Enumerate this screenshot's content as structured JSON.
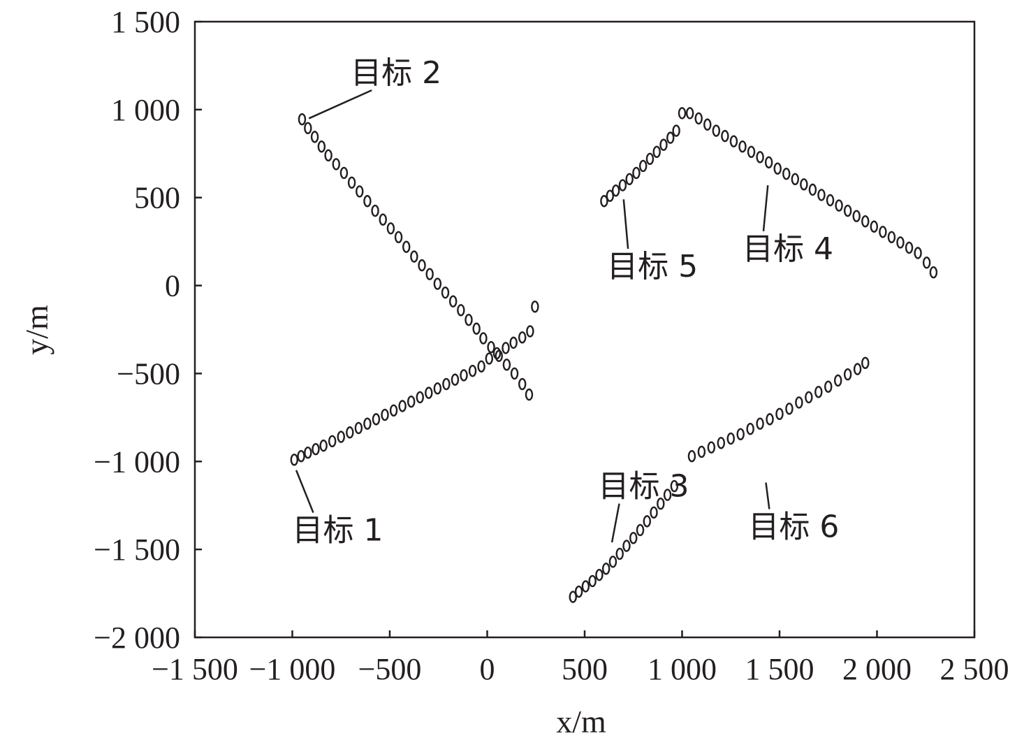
{
  "chart_data": {
    "type": "scatter",
    "title": "",
    "xlabel": "x/m",
    "ylabel": "y/m",
    "xlim": [
      -1500,
      2500
    ],
    "ylim": [
      -2000,
      1500
    ],
    "xticks": [
      -1500,
      -1000,
      -500,
      0,
      500,
      1000,
      1500,
      2000,
      2500
    ],
    "yticks": [
      -2000,
      -1500,
      -1000,
      -500,
      0,
      500,
      1000,
      1500
    ],
    "xtick_labels": [
      "−1 500",
      "−1 000",
      "−500",
      "0",
      "500",
      "1 000",
      "1 500",
      "2 000",
      "2 500"
    ],
    "ytick_labels": [
      "−2 000",
      "−1 500",
      "−1 000",
      "−500",
      "0",
      "500",
      "1 000",
      "1 500"
    ],
    "grid": false,
    "marker": "o",
    "series": [
      {
        "name": "目标 1",
        "label_pos": [
          -1000,
          -1450
        ],
        "anchor": [
          -980,
          -1050
        ],
        "x": [
          -990,
          -955,
          -920,
          -880,
          -840,
          -795,
          -750,
          -705,
          -660,
          -615,
          -570,
          -525,
          -480,
          -435,
          -390,
          -345,
          -300,
          -255,
          -210,
          -165,
          -120,
          -75,
          -30,
          10,
          50,
          95,
          135,
          180,
          220,
          245
        ],
        "y": [
          -990,
          -970,
          -950,
          -930,
          -910,
          -885,
          -860,
          -835,
          -810,
          -785,
          -760,
          -735,
          -710,
          -685,
          -660,
          -635,
          -610,
          -585,
          -560,
          -535,
          -510,
          -485,
          -460,
          -415,
          -385,
          -355,
          -325,
          -295,
          -260,
          -120
        ]
      },
      {
        "name": "目标 2",
        "label_pos": [
          -700,
          1150
        ],
        "anchor": [
          -915,
          950
        ],
        "x": [
          -950,
          -920,
          -885,
          -850,
          -815,
          -775,
          -735,
          -695,
          -655,
          -615,
          -575,
          -535,
          -495,
          -455,
          -415,
          -375,
          -335,
          -295,
          -255,
          -215,
          -175,
          -135,
          -95,
          -55,
          -20,
          20,
          60,
          100,
          140,
          180,
          215
        ],
        "y": [
          945,
          895,
          845,
          790,
          740,
          690,
          640,
          585,
          535,
          480,
          425,
          375,
          325,
          275,
          220,
          165,
          115,
          65,
          10,
          -40,
          -90,
          -140,
          -195,
          -245,
          -300,
          -350,
          -400,
          -450,
          -500,
          -560,
          -620
        ]
      },
      {
        "name": "目标 3",
        "label_pos": [
          570,
          -1200
        ],
        "anchor": [
          640,
          -1460
        ],
        "x": [
          440,
          470,
          505,
          540,
          575,
          610,
          645,
          680,
          715,
          750,
          785,
          820,
          855,
          890,
          925,
          960
        ],
        "y": [
          -1770,
          -1740,
          -1710,
          -1680,
          -1645,
          -1610,
          -1570,
          -1525,
          -1480,
          -1435,
          -1390,
          -1340,
          -1290,
          -1240,
          -1190,
          -1140
        ]
      },
      {
        "name": "目标 4",
        "label_pos": [
          1310,
          150
        ],
        "anchor": [
          1440,
          570
        ],
        "x": [
          1040,
          1085,
          1130,
          1175,
          1220,
          1265,
          1310,
          1355,
          1400,
          1445,
          1490,
          1535,
          1580,
          1625,
          1670,
          1715,
          1760,
          1805,
          1850,
          1895,
          1940,
          1985,
          2030,
          2075,
          2120,
          2165,
          2210,
          2255,
          2290
        ],
        "y": [
          980,
          950,
          915,
          880,
          850,
          820,
          790,
          760,
          730,
          700,
          665,
          635,
          605,
          575,
          545,
          515,
          485,
          455,
          425,
          395,
          365,
          335,
          305,
          275,
          245,
          215,
          185,
          130,
          75
        ]
      },
      {
        "name": "目标 5",
        "label_pos": [
          615,
          50
        ],
        "anchor": [
          700,
          490
        ],
        "x": [
          600,
          630,
          660,
          695,
          730,
          765,
          800,
          835,
          870,
          905,
          940,
          970,
          1000
        ],
        "y": [
          480,
          510,
          540,
          570,
          605,
          640,
          680,
          720,
          760,
          800,
          840,
          880,
          980
        ]
      },
      {
        "name": "目标 6",
        "label_pos": [
          1340,
          -1430
        ],
        "anchor": [
          1430,
          -1120
        ],
        "x": [
          1050,
          1100,
          1150,
          1200,
          1250,
          1300,
          1350,
          1400,
          1450,
          1500,
          1550,
          1600,
          1650,
          1700,
          1750,
          1800,
          1850,
          1900,
          1940
        ],
        "y": [
          -970,
          -945,
          -920,
          -895,
          -870,
          -845,
          -815,
          -785,
          -760,
          -730,
          -700,
          -665,
          -635,
          -605,
          -575,
          -540,
          -505,
          -475,
          -440
        ]
      }
    ]
  }
}
